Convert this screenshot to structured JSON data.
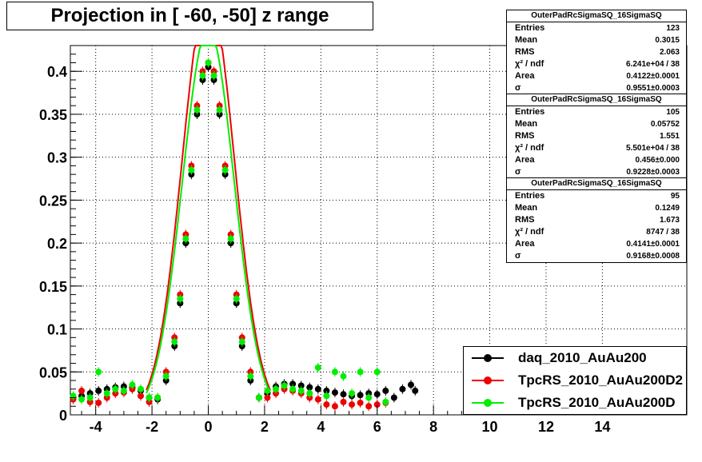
{
  "title": "Projection in [ -60, -50] z range",
  "colors": {
    "daq": "#000000",
    "rs2": "#ee0000",
    "rs": "#00ee00"
  },
  "stats_boxes": [
    {
      "header": "OuterPadRcSigmaSQ_16SigmaSQ",
      "rows": [
        {
          "k": "Entries",
          "v": "123"
        },
        {
          "k": "Mean",
          "v": "0.3015"
        },
        {
          "k": "RMS",
          "v": "2.063"
        },
        {
          "k": "χ² / ndf",
          "v": "6.241e+04 / 38"
        },
        {
          "k": "Area",
          "v": "0.4122±0.0001"
        },
        {
          "k": "σ",
          "v": "0.9551±0.0003"
        }
      ]
    },
    {
      "header": "OuterPadRcSigmaSQ_16SigmaSQ",
      "rows": [
        {
          "k": "Entries",
          "v": "105"
        },
        {
          "k": "Mean",
          "v": "0.05752"
        },
        {
          "k": "RMS",
          "v": "1.551"
        },
        {
          "k": "χ² / ndf",
          "v": "5.501e+04 / 38"
        },
        {
          "k": "Area",
          "v": "0.456±0.000"
        },
        {
          "k": "σ",
          "v": "0.9228±0.0003"
        }
      ]
    },
    {
      "header": "OuterPadRcSigmaSQ_16SigmaSQ",
      "rows": [
        {
          "k": "Entries",
          "v": "95"
        },
        {
          "k": "Mean",
          "v": "0.1249"
        },
        {
          "k": "RMS",
          "v": "1.673"
        },
        {
          "k": "χ² / ndf",
          "v": "8747 / 38"
        },
        {
          "k": "Area",
          "v": "0.4141±0.0001"
        },
        {
          "k": "σ",
          "v": "0.9168±0.0008"
        }
      ]
    }
  ],
  "legend": [
    "daq_2010_AuAu200",
    "TpcRS_2010_AuAu200D2",
    "TpcRS_2010_AuAu200D"
  ],
  "chart_data": {
    "type": "scatter",
    "title": "Projection in [ -60, -50] z range",
    "xlabel": "",
    "ylabel": "",
    "xlim": [
      -4.9,
      17.0
    ],
    "ylim": [
      0,
      0.43
    ],
    "grid": true,
    "legend_position": "bottom-right",
    "xticks": [
      "-4",
      "-2",
      "0",
      "2",
      "4",
      "6",
      "8",
      "10",
      "12",
      "14"
    ],
    "yticks": [
      "0",
      "0.05",
      "0.1",
      "0.15",
      "0.2",
      "0.25",
      "0.3",
      "0.35",
      "0.4"
    ],
    "series": [
      {
        "name": "daq_2010_AuAu200",
        "color": "#000000",
        "x": [
          -4.8,
          -4.5,
          -4.2,
          -3.9,
          -3.6,
          -3.3,
          -3.0,
          -2.7,
          -2.4,
          -2.1,
          -1.8,
          -1.5,
          -1.2,
          -1.0,
          -0.8,
          -0.6,
          -0.4,
          -0.2,
          0.0,
          0.2,
          0.4,
          0.6,
          0.8,
          1.0,
          1.2,
          1.5,
          1.8,
          2.1,
          2.4,
          2.7,
          3.0,
          3.3,
          3.6,
          3.9,
          4.2,
          4.5,
          4.8,
          5.1,
          5.4,
          5.7,
          6.0,
          6.3,
          6.6,
          6.9,
          7.2,
          7.35
        ],
        "y": [
          0.02,
          0.022,
          0.025,
          0.028,
          0.03,
          0.032,
          0.033,
          0.032,
          0.028,
          0.02,
          0.018,
          0.04,
          0.08,
          0.13,
          0.2,
          0.28,
          0.35,
          0.39,
          0.405,
          0.39,
          0.35,
          0.28,
          0.2,
          0.13,
          0.08,
          0.04,
          0.02,
          0.025,
          0.033,
          0.036,
          0.036,
          0.034,
          0.032,
          0.03,
          0.028,
          0.026,
          0.024,
          0.022,
          0.023,
          0.025,
          0.024,
          0.028,
          0.02,
          0.03,
          0.035,
          0.028
        ]
      },
      {
        "name": "TpcRS_2010_AuAu200D2",
        "color": "#ee0000",
        "x": [
          -4.8,
          -4.5,
          -4.2,
          -3.9,
          -3.6,
          -3.3,
          -3.0,
          -2.7,
          -2.4,
          -2.1,
          -1.8,
          -1.5,
          -1.2,
          -1.0,
          -0.8,
          -0.6,
          -0.4,
          -0.2,
          0.0,
          0.2,
          0.4,
          0.6,
          0.8,
          1.0,
          1.2,
          1.5,
          1.8,
          2.1,
          2.4,
          2.7,
          3.0,
          3.3,
          3.6,
          3.9,
          4.2,
          4.5,
          4.8,
          5.1,
          5.4,
          5.7,
          6.0,
          6.3
        ],
        "y": [
          0.018,
          0.028,
          0.015,
          0.014,
          0.02,
          0.025,
          0.026,
          0.03,
          0.022,
          0.015,
          0.02,
          0.05,
          0.09,
          0.14,
          0.21,
          0.29,
          0.36,
          0.4,
          0.41,
          0.4,
          0.36,
          0.29,
          0.21,
          0.14,
          0.09,
          0.05,
          0.02,
          0.02,
          0.025,
          0.03,
          0.028,
          0.025,
          0.02,
          0.018,
          0.012,
          0.01,
          0.015,
          0.012,
          0.014,
          0.01,
          0.012,
          0.014
        ]
      },
      {
        "name": "TpcRS_2010_AuAu200D",
        "color": "#00ee00",
        "x": [
          -4.8,
          -4.5,
          -4.2,
          -3.9,
          -3.6,
          -3.3,
          -3.0,
          -2.7,
          -2.4,
          -2.1,
          -1.8,
          -1.5,
          -1.2,
          -1.0,
          -0.8,
          -0.6,
          -0.4,
          -0.2,
          0.0,
          0.2,
          0.4,
          0.6,
          0.8,
          1.0,
          1.2,
          1.5,
          1.8,
          2.1,
          2.4,
          2.7,
          3.0,
          3.3,
          3.6,
          3.9,
          4.2,
          4.5,
          4.8,
          5.1,
          5.4,
          5.7,
          6.0,
          6.3
        ],
        "y": [
          0.022,
          0.018,
          0.02,
          0.05,
          0.025,
          0.03,
          0.028,
          0.035,
          0.03,
          0.02,
          0.02,
          0.045,
          0.085,
          0.135,
          0.205,
          0.285,
          0.355,
          0.395,
          0.41,
          0.395,
          0.355,
          0.285,
          0.205,
          0.135,
          0.085,
          0.045,
          0.02,
          0.028,
          0.03,
          0.034,
          0.03,
          0.028,
          0.025,
          0.055,
          0.022,
          0.05,
          0.045,
          0.025,
          0.05,
          0.02,
          0.05,
          0.015
        ]
      }
    ],
    "fit_curves": [
      {
        "color": "#ee0000",
        "area": 0.456,
        "sigma": 0.9228
      },
      {
        "color": "#00ee00",
        "area": 0.4141,
        "sigma": 0.9168
      }
    ]
  }
}
